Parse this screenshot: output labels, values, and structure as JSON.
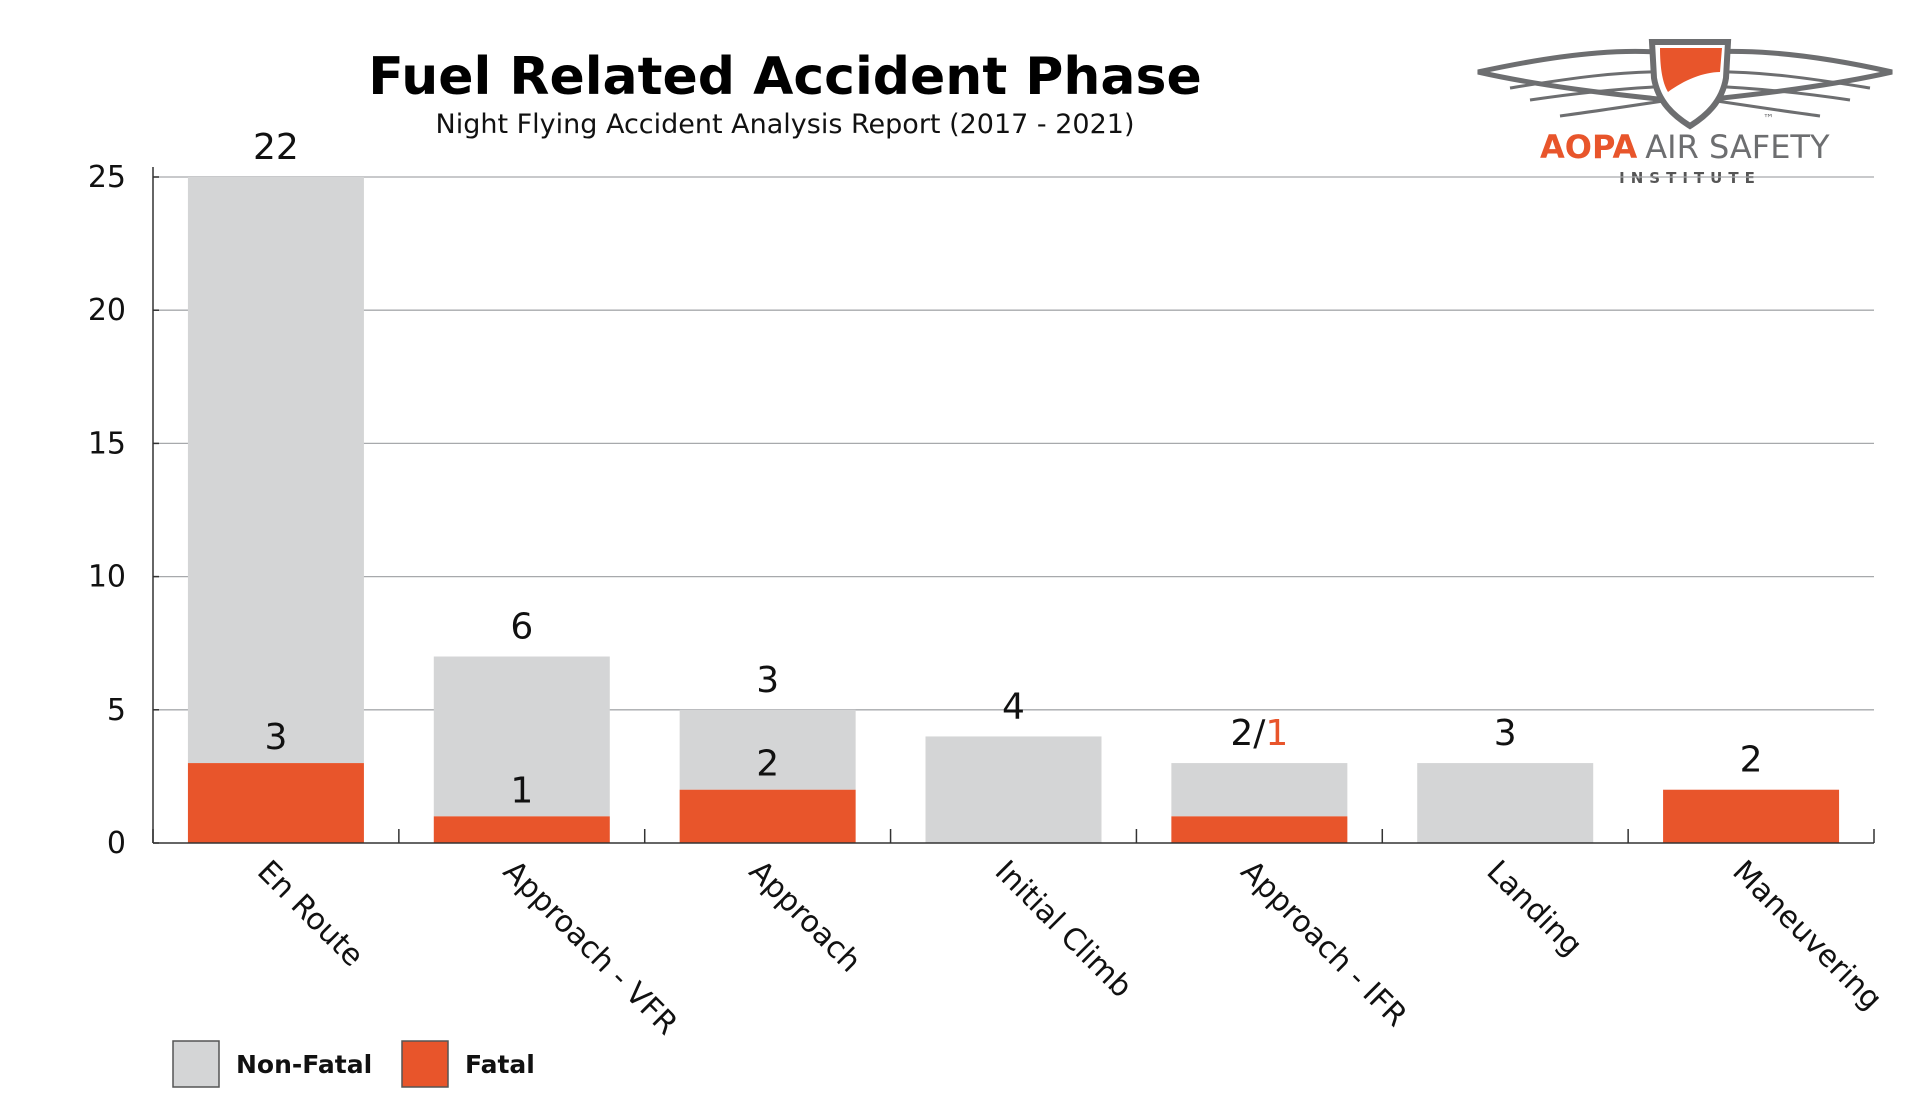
{
  "chart_data": {
    "type": "bar",
    "stacked": true,
    "title": "Fuel Related Accident Phase",
    "subtitle": "Night Flying Accident Analysis Report (2017 - 2021)",
    "categories": [
      "En Route",
      "Approach - VFR",
      "Approach",
      "Initial Climb",
      "Approach - IFR",
      "Landing",
      "Maneuvering"
    ],
    "series": [
      {
        "name": "Fatal",
        "color": "#e8552b",
        "values": [
          3,
          1,
          2,
          0,
          1,
          0,
          2
        ]
      },
      {
        "name": "Non-Fatal",
        "color": "#d4d5d6",
        "values": [
          22,
          6,
          3,
          4,
          2,
          3,
          0
        ]
      }
    ],
    "data_labels": {
      "totals": [
        "22",
        "6",
        "3",
        "4",
        "2/",
        "3",
        "2"
      ],
      "totals_accent": [
        "",
        "",
        "",
        "",
        "1",
        "",
        ""
      ],
      "fatal": [
        "3",
        "1",
        "2",
        "",
        "",
        "",
        ""
      ]
    },
    "ylim": [
      0,
      25
    ],
    "yticks": [
      0,
      5,
      10,
      15,
      20,
      25
    ],
    "xlabel": "",
    "ylabel": "",
    "grid": true,
    "legend": {
      "position": "bottom-left",
      "order": [
        "Non-Fatal",
        "Fatal"
      ]
    }
  },
  "logo": {
    "brand": "AOPA",
    "name": "AIR SAFETY",
    "sub": "INSTITUTE",
    "tm": "™",
    "accent": "#e8552b",
    "gray": "#6d6e70"
  }
}
